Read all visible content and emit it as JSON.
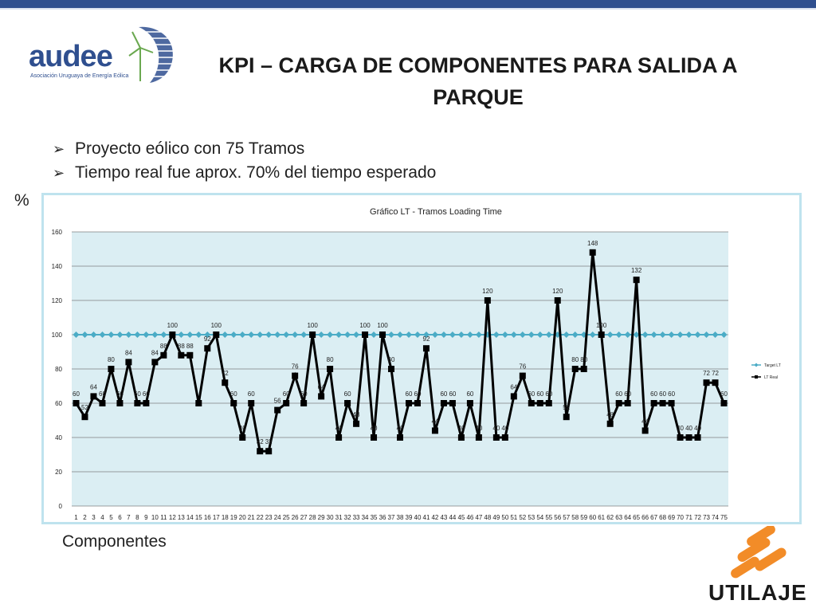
{
  "slide": {
    "title": "KPI – CARGA DE COMPONENTES PARA SALIDA A PARQUE",
    "bullets": [
      "Proyecto eólico con 75 Tramos",
      "Tiempo real fue aprox. 70% del tiempo esperado"
    ],
    "y_axis_caption": "%",
    "x_axis_caption": "Componentes",
    "logo_left_text": "audee",
    "logo_left_subtitle": "Asociación Uruguaya de Energía Eólica",
    "logo_right_text": "UTILAJE"
  },
  "chart_data": {
    "type": "line",
    "title": "Gráfico LT - Tramos Loading Time",
    "xlabel": "",
    "ylabel": "",
    "ylim": [
      0,
      160
    ],
    "yticks": [
      0,
      20,
      40,
      60,
      80,
      100,
      120,
      140,
      160
    ],
    "grid": true,
    "legend_position": "right",
    "categories": [
      "1",
      "2",
      "3",
      "4",
      "5",
      "6",
      "7",
      "8",
      "9",
      "10",
      "11",
      "12",
      "13",
      "14",
      "15",
      "16",
      "17",
      "18",
      "19",
      "20",
      "21",
      "22",
      "23",
      "24",
      "25",
      "26",
      "27",
      "28",
      "29",
      "30",
      "31",
      "32",
      "33",
      "34",
      "35",
      "36",
      "37",
      "38",
      "39",
      "40",
      "41",
      "42",
      "43",
      "44",
      "45",
      "46",
      "47",
      "48",
      "49",
      "50",
      "51",
      "52",
      "53",
      "54",
      "55",
      "56",
      "57",
      "58",
      "59",
      "60",
      "61",
      "62",
      "63",
      "64",
      "65",
      "66",
      "67",
      "68",
      "69",
      "70",
      "71",
      "72",
      "73",
      "74",
      "75"
    ],
    "series": [
      {
        "name": "Target LT",
        "color": "#4bacc6",
        "marker": "diamond",
        "values": [
          100,
          100,
          100,
          100,
          100,
          100,
          100,
          100,
          100,
          100,
          100,
          100,
          100,
          100,
          100,
          100,
          100,
          100,
          100,
          100,
          100,
          100,
          100,
          100,
          100,
          100,
          100,
          100,
          100,
          100,
          100,
          100,
          100,
          100,
          100,
          100,
          100,
          100,
          100,
          100,
          100,
          100,
          100,
          100,
          100,
          100,
          100,
          100,
          100,
          100,
          100,
          100,
          100,
          100,
          100,
          100,
          100,
          100,
          100,
          100,
          100,
          100,
          100,
          100,
          100,
          100,
          100,
          100,
          100,
          100,
          100,
          100,
          100,
          100,
          100
        ]
      },
      {
        "name": "LT Real",
        "color": "#000000",
        "marker": "square",
        "values": [
          60,
          52,
          64,
          60,
          80,
          60,
          84,
          60,
          60,
          84,
          88,
          100,
          88,
          88,
          60,
          92,
          100,
          72,
          60,
          40,
          60,
          32,
          32,
          56,
          60,
          76,
          60,
          100,
          64,
          80,
          40,
          60,
          48,
          100,
          40,
          100,
          80,
          40,
          60,
          60,
          92,
          44,
          60,
          60,
          40,
          60,
          40,
          120,
          40,
          40,
          64,
          76,
          60,
          60,
          60,
          120,
          52,
          80,
          80,
          148,
          100,
          48,
          60,
          60,
          132,
          44,
          60,
          60,
          60,
          40,
          40,
          40,
          72,
          72,
          60
        ]
      }
    ],
    "data_labels": [
      "60",
      "52",
      "64",
      "60",
      "80",
      "60",
      "84",
      "60",
      "60",
      "84",
      "88",
      "100",
      "88",
      "88",
      "",
      "92",
      "100",
      "72",
      "60",
      "40",
      "60",
      "32",
      "32",
      "56",
      "60",
      "76",
      "60",
      "100",
      "64",
      "80",
      "40",
      "60",
      "48",
      "100",
      "40",
      "100",
      "80",
      "40",
      "60",
      "60",
      "92",
      "44",
      "60",
      "60",
      "40",
      "60",
      "40",
      "120",
      "40",
      "40",
      "64",
      "76",
      "60",
      "60",
      "60",
      "120",
      "52",
      "80",
      "80",
      "148",
      "100",
      "48",
      "60",
      "60",
      "132",
      "44",
      "60",
      "60",
      "60",
      "40",
      "40",
      "40",
      "72",
      "72",
      "60"
    ]
  }
}
